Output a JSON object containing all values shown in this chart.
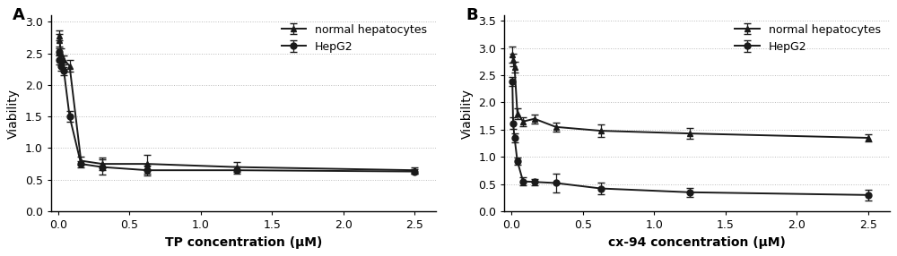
{
  "panel_A": {
    "label": "A",
    "xlabel": "TP concentration (μM)",
    "ylabel": "Viability",
    "xlim": [
      -0.05,
      2.65
    ],
    "ylim": [
      0,
      3.1
    ],
    "yticks": [
      0,
      0.5,
      1,
      1.5,
      2,
      2.5,
      3
    ],
    "xticks": [
      0,
      0.5,
      1,
      1.5,
      2,
      2.5
    ],
    "normal_hepatocytes": {
      "x": [
        0.005,
        0.01,
        0.02,
        0.04,
        0.08,
        0.16,
        0.31,
        0.625,
        1.25,
        2.5
      ],
      "y": [
        2.78,
        2.7,
        2.5,
        2.4,
        2.3,
        0.8,
        0.75,
        0.75,
        0.7,
        0.65
      ],
      "yerr": [
        0.08,
        0.1,
        0.08,
        0.07,
        0.09,
        0.06,
        0.1,
        0.15,
        0.08,
        0.05
      ]
    },
    "hepg2": {
      "x": [
        0.005,
        0.01,
        0.02,
        0.04,
        0.08,
        0.16,
        0.31,
        0.625,
        1.25,
        2.5
      ],
      "y": [
        2.52,
        2.4,
        2.3,
        2.22,
        1.5,
        0.75,
        0.7,
        0.65,
        0.65,
        0.63
      ],
      "yerr": [
        0.06,
        0.08,
        0.07,
        0.06,
        0.08,
        0.05,
        0.12,
        0.08,
        0.06,
        0.04
      ]
    }
  },
  "panel_B": {
    "label": "B",
    "xlabel": "cx-94 concentration (μM)",
    "ylabel": "Viability",
    "xlim": [
      -0.05,
      2.65
    ],
    "ylim": [
      0,
      3.6
    ],
    "yticks": [
      0,
      0.5,
      1,
      1.5,
      2,
      2.5,
      3,
      3.5
    ],
    "xticks": [
      0,
      0.5,
      1,
      1.5,
      2,
      2.5
    ],
    "normal_hepatocytes": {
      "x": [
        0.005,
        0.01,
        0.02,
        0.04,
        0.08,
        0.16,
        0.31,
        0.625,
        1.25,
        2.5
      ],
      "y": [
        2.88,
        2.78,
        2.65,
        1.8,
        1.65,
        1.7,
        1.55,
        1.48,
        1.43,
        1.35
      ],
      "yerr": [
        0.15,
        0.12,
        0.1,
        0.1,
        0.08,
        0.08,
        0.08,
        0.12,
        0.1,
        0.07
      ]
    },
    "hepg2": {
      "x": [
        0.005,
        0.01,
        0.02,
        0.04,
        0.08,
        0.16,
        0.31,
        0.625,
        1.25,
        2.5
      ],
      "y": [
        2.38,
        1.62,
        1.35,
        0.92,
        0.55,
        0.54,
        0.52,
        0.42,
        0.35,
        0.3
      ],
      "yerr": [
        0.08,
        0.1,
        0.08,
        0.07,
        0.07,
        0.06,
        0.18,
        0.1,
        0.08,
        0.1
      ]
    }
  },
  "line_color": "#1a1a1a",
  "marker_triangle": "^",
  "marker_circle": "o",
  "markersize": 5,
  "markerfacecolor": "#1a1a1a",
  "linewidth": 1.4,
  "capsize": 3,
  "elinewidth": 0.9,
  "legend_fontsize": 9,
  "axis_fontsize": 10,
  "label_fontsize": 13,
  "tick_fontsize": 9,
  "xlabel_fontsize": 10,
  "background_color": "#ffffff",
  "grid_color": "#bbbbbb",
  "grid_linestyle": ":",
  "grid_linewidth": 0.7
}
